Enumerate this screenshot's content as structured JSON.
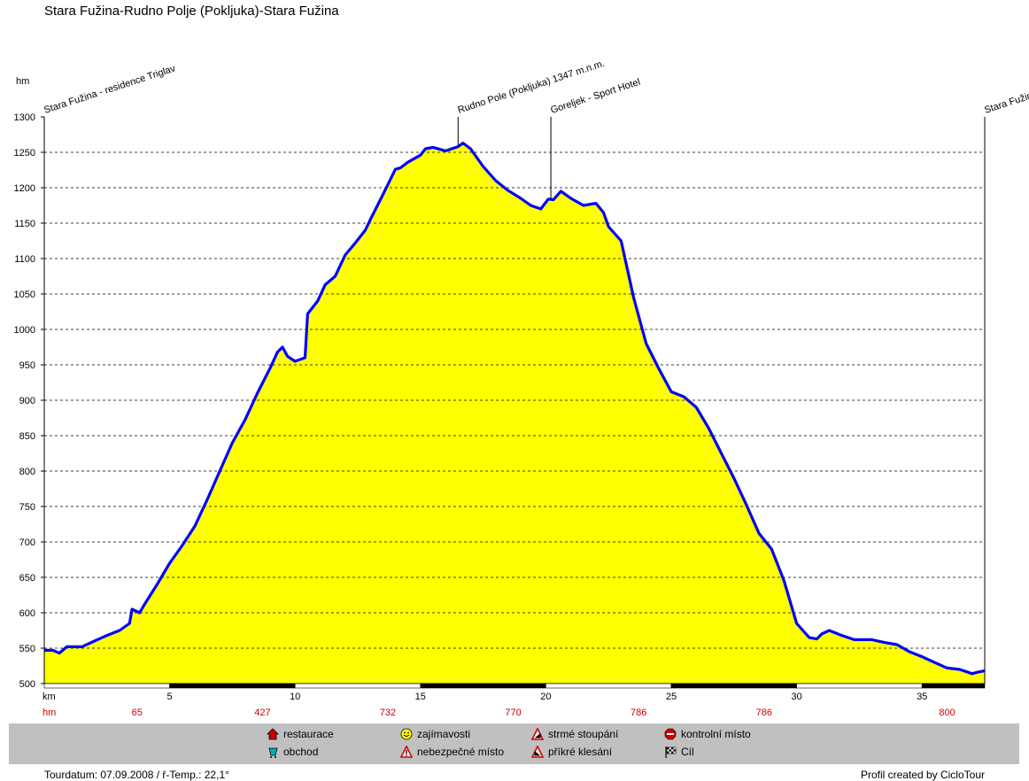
{
  "title": "Stara Fužina-Rudno Polje (Pokljuka)-Stara Fužina",
  "colors": {
    "fill": "#ffff00",
    "line": "#0000ff",
    "red_text": "#cc0000",
    "legend_bg": "#c0c0c0"
  },
  "chart_data": {
    "type": "area",
    "title": "Stara Fužina-Rudno Polje (Pokljuka)-Stara Fužina",
    "xlabel": "km",
    "ylabel": "hm",
    "xlim": [
      0,
      37.5
    ],
    "ylim": [
      500,
      1300
    ],
    "yticks": [
      500,
      550,
      600,
      650,
      700,
      750,
      800,
      850,
      900,
      950,
      1000,
      1050,
      1100,
      1150,
      1200,
      1250,
      1300
    ],
    "xticks": [
      5,
      10,
      15,
      20,
      25,
      30,
      35
    ],
    "grid": true,
    "series": [
      {
        "x": [
          0,
          0.35,
          0.6,
          0.9,
          1.5,
          2.0,
          2.5,
          3.0,
          3.4,
          3.5,
          3.8,
          4.0,
          4.5,
          5.0,
          5.5,
          6.0,
          6.5,
          7.0,
          7.5,
          8.0,
          8.5,
          9.0,
          9.3,
          9.5,
          9.7,
          10.0,
          10.4,
          10.5,
          10.9,
          11.2,
          11.6,
          12.0,
          12.4,
          12.8,
          13.0,
          13.5,
          14.0,
          14.2,
          14.5,
          15.0,
          15.2,
          15.5,
          16.0,
          16.5,
          16.7,
          17.0,
          17.5,
          18.0,
          18.5,
          19.0,
          19.4,
          19.8,
          20.1,
          20.3,
          20.6,
          21.0,
          21.5,
          22.0,
          22.3,
          22.5,
          23.0,
          23.5,
          24.0,
          24.5,
          25.0,
          25.5,
          26.0,
          26.5,
          27.0,
          27.5,
          28.0,
          28.5,
          29.0,
          29.5,
          30.0,
          30.5,
          30.8,
          31.0,
          31.3,
          31.8,
          32.3,
          33.0,
          33.5,
          34.0,
          34.5,
          35.0,
          35.3,
          36.0,
          36.5,
          37.0,
          37.2,
          37.5
        ],
        "values": [
          547,
          547,
          543,
          552,
          552,
          560,
          568,
          575,
          585,
          605,
          600,
          612,
          640,
          670,
          695,
          722,
          760,
          800,
          840,
          872,
          910,
          945,
          968,
          975,
          962,
          955,
          960,
          1022,
          1040,
          1063,
          1075,
          1105,
          1122,
          1140,
          1155,
          1190,
          1226,
          1228,
          1236,
          1246,
          1255,
          1257,
          1252,
          1258,
          1263,
          1255,
          1230,
          1210,
          1196,
          1185,
          1175,
          1170,
          1184,
          1183,
          1195,
          1185,
          1175,
          1178,
          1165,
          1145,
          1125,
          1045,
          980,
          945,
          912,
          905,
          890,
          860,
          825,
          790,
          752,
          712,
          690,
          645,
          585,
          565,
          563,
          570,
          575,
          568,
          562,
          562,
          558,
          555,
          545,
          538,
          533,
          522,
          520,
          514,
          516,
          518
        ]
      }
    ],
    "waypoints": [
      {
        "km": 0,
        "label": "Stara Fužina - residence Triglav"
      },
      {
        "km": 16.5,
        "label": "Rudno Pole (Pokljuka) 1347 m.n.m."
      },
      {
        "km": 20.2,
        "label": "Goreljek - Sport Hotel"
      },
      {
        "km": 37.5,
        "label": "Stara Fužina"
      }
    ],
    "cumulative_climb": [
      {
        "km": 3.7,
        "value": "65"
      },
      {
        "km": 8.7,
        "value": "427"
      },
      {
        "km": 13.7,
        "value": "732"
      },
      {
        "km": 18.7,
        "value": "770"
      },
      {
        "km": 23.7,
        "value": "786"
      },
      {
        "km": 28.7,
        "value": "786"
      },
      {
        "km": 36.0,
        "value": "800"
      }
    ]
  },
  "axis": {
    "y_unit": "hm",
    "x_unit": "km",
    "climb_unit": "hm"
  },
  "legend": [
    {
      "icon": "restaurant-icon",
      "label": "restaurace"
    },
    {
      "icon": "shop-icon",
      "label": "obchod"
    },
    {
      "icon": "smiley-icon",
      "label": "zajímavosti"
    },
    {
      "icon": "warning-icon",
      "label": "nebezpečné místo"
    },
    {
      "icon": "steep-climb-icon",
      "label": "strmé stoupání"
    },
    {
      "icon": "steep-descent-icon",
      "label": "příkré klesání"
    },
    {
      "icon": "stop-icon",
      "label": "kontrolní místo"
    },
    {
      "icon": "finish-flag-icon",
      "label": "Cíl"
    }
  ],
  "footer": {
    "left": "Tourdatum: 07.09.2008  /  ř-Temp.: 22,1°",
    "right": "Profil created by CicloTour"
  }
}
